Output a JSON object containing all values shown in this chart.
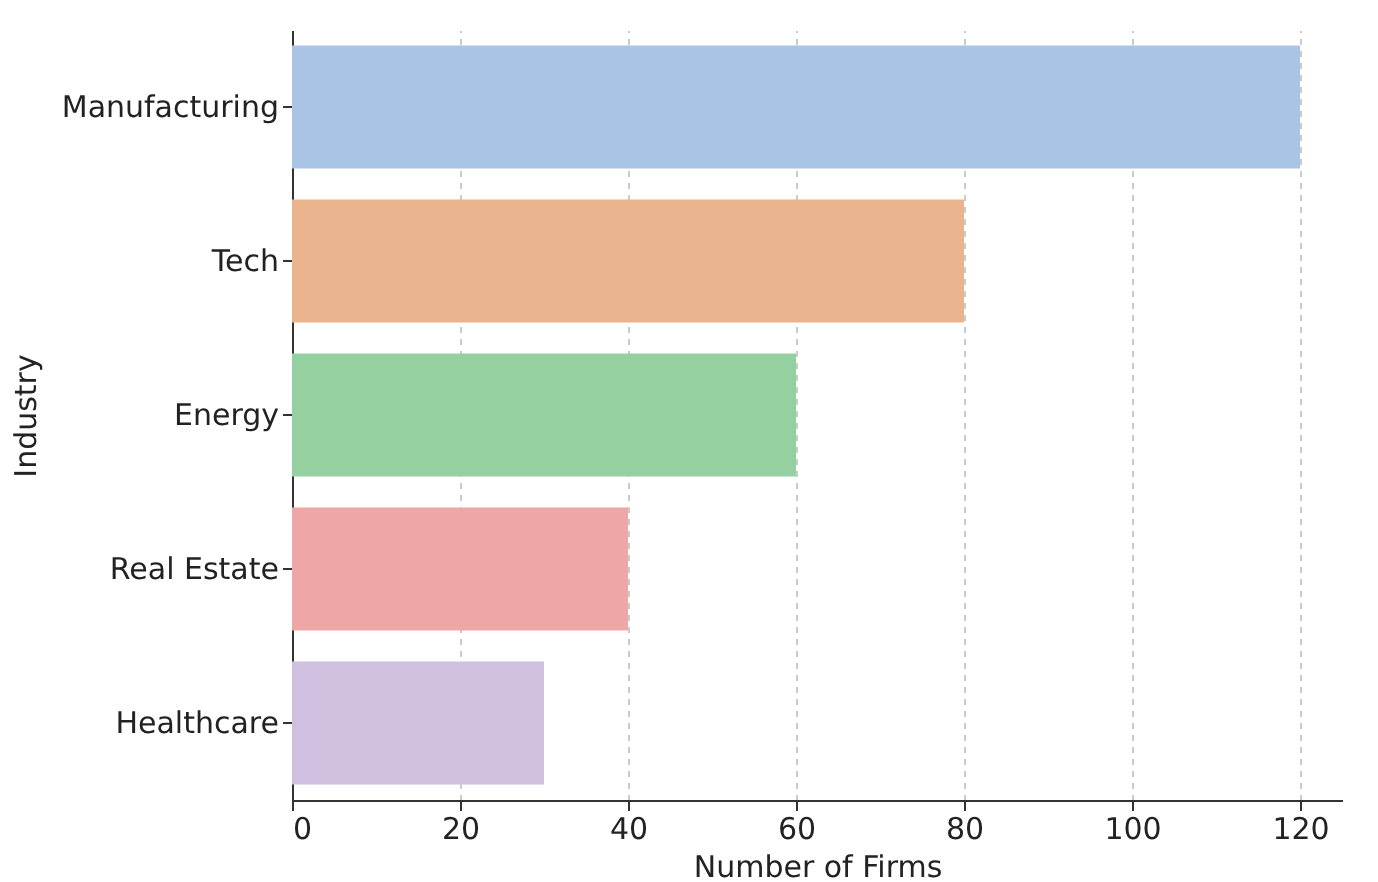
{
  "chart_data": {
    "type": "bar",
    "orientation": "horizontal",
    "xlabel": "Number of Firms",
    "ylabel": "Industry",
    "categories": [
      "Manufacturing",
      "Tech",
      "Energy",
      "Real Estate",
      "Healthcare"
    ],
    "values": [
      120,
      80,
      60,
      40,
      30
    ],
    "colors": [
      "#a9c4e4",
      "#e9b48e",
      "#95d1a0",
      "#eea7a6",
      "#d0c0e0"
    ],
    "xlim": [
      0,
      125
    ],
    "xticks": [
      0,
      20,
      40,
      60,
      80,
      100,
      120
    ],
    "grid": "x"
  }
}
